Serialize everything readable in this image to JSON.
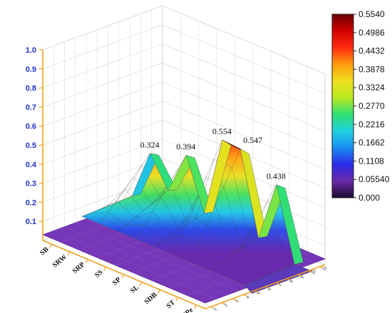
{
  "chart_data": {
    "type": "surface3d",
    "x_categories": [
      "SB",
      "SRW",
      "SRP",
      "SS",
      "SP",
      "SL",
      "SDB",
      "ST",
      "SPe"
    ],
    "y_ticks": [
      "1",
      "2",
      "3",
      "4",
      "5",
      "6",
      "7",
      "8",
      "9",
      "10",
      "11"
    ],
    "z_ticks": [
      "0.1",
      "0.2",
      "0.3",
      "0.4",
      "0.5",
      "0.6",
      "0.7",
      "0.8",
      "0.9",
      "1.0"
    ],
    "zlim": [
      0,
      1.0
    ],
    "annotations": [
      {
        "text": "0.324",
        "value": 0.324
      },
      {
        "text": "0.394",
        "value": 0.394
      },
      {
        "text": "0.554",
        "value": 0.554
      },
      {
        "text": "0.547",
        "value": 0.547
      },
      {
        "text": "0.438",
        "value": 0.438
      }
    ],
    "colorbar": {
      "ticks": [
        "0.5540",
        "0.4986",
        "0.4432",
        "0.3878",
        "0.3324",
        "0.2770",
        "0.2216",
        "0.1662",
        "0.1108",
        "0.05540",
        "0.000"
      ],
      "range": [
        0,
        0.554
      ],
      "colors": [
        "#1a0a2e",
        "#6a2aa8",
        "#2a2ae8",
        "#1a8ef0",
        "#20d0e0",
        "#30e070",
        "#b8e820",
        "#f0e020",
        "#ff9a10",
        "#ff2a10",
        "#d00000",
        "#6a0000"
      ]
    },
    "peak_profile": [
      0.06,
      0.324,
      0.17,
      0.394,
      0.13,
      0.554,
      0.547,
      0.12,
      0.438,
      0.06
    ]
  }
}
